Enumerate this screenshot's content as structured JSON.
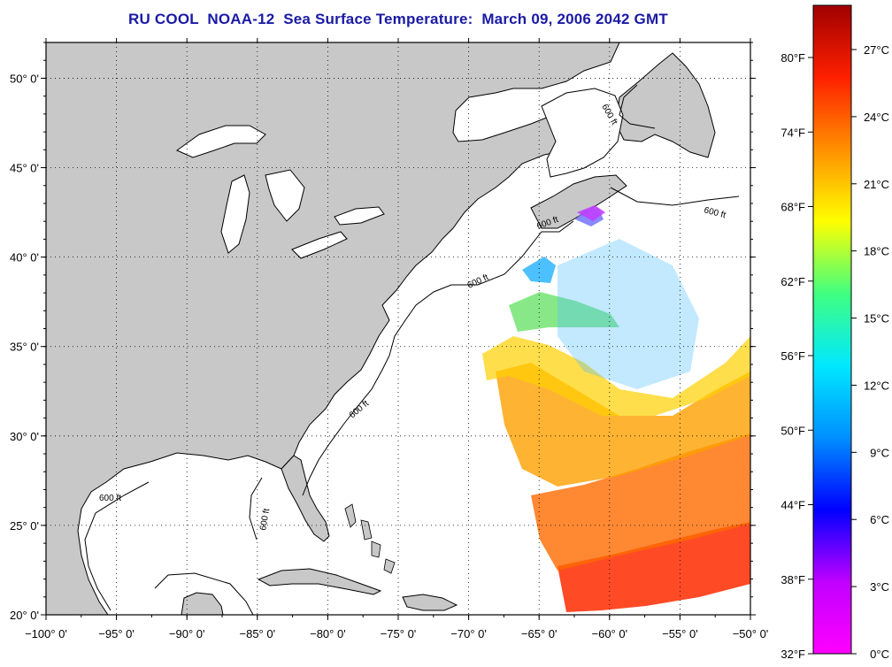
{
  "title": "RU COOL  NOAA-12  Sea Surface Temperature:  March 09, 2006 2042 GMT",
  "map": {
    "lon_range": [
      -100,
      -50
    ],
    "lat_range": [
      20,
      52
    ],
    "lon_ticks": [
      "−100° 0'",
      "−95° 0'",
      "−90° 0'",
      "−85° 0'",
      "−80° 0'",
      "−75° 0'",
      "−70° 0'",
      "−65° 0'",
      "−60° 0'",
      "−55° 0'",
      "−50° 0'"
    ],
    "lat_ticks": [
      "50° 0'",
      "45° 0'",
      "40° 0'",
      "35° 0'",
      "30° 0'",
      "25° 0'",
      "20° 0'"
    ],
    "grid": "dotted",
    "land_color": "#c8c8c8",
    "isobath_label": "600 ft"
  },
  "colorbar": {
    "fahrenheit_labels": [
      "80°F",
      "74°F",
      "68°F",
      "62°F",
      "56°F",
      "50°F",
      "44°F",
      "38°F",
      "32°F"
    ],
    "celsius_labels": [
      "27°C",
      "24°C",
      "21°C",
      "18°C",
      "15°C",
      "12°C",
      "9°C",
      "6°C",
      "3°C",
      "0°C"
    ],
    "gradient": [
      "#ff00ff",
      "#c000ff",
      "#0000ff",
      "#0090ff",
      "#00e8ff",
      "#40ff80",
      "#ffff00",
      "#ff9000",
      "#ff2000",
      "#a00000"
    ]
  }
}
